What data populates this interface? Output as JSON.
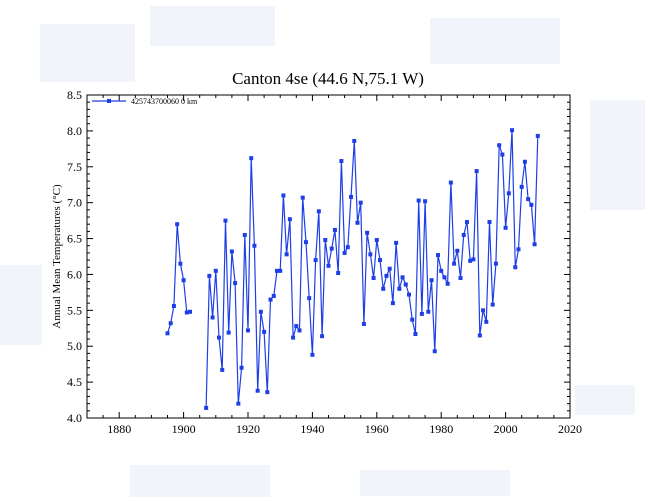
{
  "chart_data": {
    "type": "line",
    "title": "Canton 4se (44.6 N,75.1 W)",
    "xlabel": "",
    "ylabel": "Annual Mean Temperatures (°C)",
    "xlim": [
      1870,
      2020
    ],
    "ylim": [
      4.0,
      8.5
    ],
    "xticks": [
      1880,
      1900,
      1920,
      1940,
      1960,
      1980,
      2000,
      2020
    ],
    "yticks": [
      "4.0",
      "4.5",
      "5.0",
      "5.5",
      "6.0",
      "6.5",
      "7.0",
      "7.5",
      "8.0",
      "8.5"
    ],
    "legend_position": "top-left",
    "grid": false,
    "series": [
      {
        "name": "425743700060  0 km",
        "color": "#1f3fe6",
        "marker": "square",
        "points": [
          [
            1895,
            5.18
          ],
          [
            1896,
            5.32
          ],
          [
            1897,
            5.56
          ],
          [
            1898,
            6.7
          ],
          [
            1899,
            6.15
          ],
          [
            1900,
            5.92
          ],
          [
            1901,
            5.47
          ],
          [
            1902,
            5.48
          ],
          null,
          [
            1907,
            4.14
          ],
          [
            1908,
            5.98
          ],
          [
            1909,
            5.4
          ],
          [
            1910,
            6.05
          ],
          [
            1911,
            5.12
          ],
          [
            1912,
            4.67
          ],
          [
            1913,
            6.75
          ],
          [
            1914,
            5.19
          ],
          [
            1915,
            6.32
          ],
          [
            1916,
            5.88
          ],
          [
            1917,
            4.2
          ],
          [
            1918,
            4.7
          ],
          [
            1919,
            6.55
          ],
          [
            1920,
            5.22
          ],
          [
            1921,
            7.62
          ],
          [
            1922,
            6.4
          ],
          [
            1923,
            4.38
          ],
          [
            1924,
            5.48
          ],
          [
            1925,
            5.2
          ],
          [
            1926,
            4.36
          ],
          [
            1927,
            5.65
          ],
          [
            1928,
            5.7
          ],
          [
            1929,
            6.05
          ],
          [
            1930,
            6.05
          ],
          [
            1931,
            7.1
          ],
          [
            1932,
            6.28
          ],
          [
            1933,
            6.77
          ],
          [
            1934,
            5.12
          ],
          [
            1935,
            5.28
          ],
          [
            1936,
            5.22
          ],
          [
            1937,
            7.07
          ],
          [
            1938,
            6.45
          ],
          [
            1939,
            5.67
          ],
          [
            1940,
            4.88
          ],
          [
            1941,
            6.2
          ],
          [
            1942,
            6.88
          ],
          [
            1943,
            5.14
          ],
          [
            1944,
            6.48
          ],
          [
            1945,
            6.12
          ],
          [
            1946,
            6.36
          ],
          [
            1947,
            6.62
          ],
          [
            1948,
            6.02
          ],
          [
            1949,
            7.58
          ],
          [
            1950,
            6.3
          ],
          [
            1951,
            6.38
          ],
          [
            1952,
            7.08
          ],
          [
            1953,
            7.86
          ],
          [
            1954,
            6.72
          ],
          [
            1955,
            7.0
          ],
          [
            1956,
            5.31
          ],
          [
            1957,
            6.58
          ],
          [
            1958,
            6.28
          ],
          [
            1959,
            5.95
          ],
          [
            1960,
            6.48
          ],
          [
            1961,
            6.2
          ],
          [
            1962,
            5.8
          ],
          [
            1963,
            5.98
          ],
          [
            1964,
            6.08
          ],
          [
            1965,
            5.6
          ],
          [
            1966,
            6.44
          ],
          [
            1967,
            5.8
          ],
          [
            1968,
            5.96
          ],
          [
            1969,
            5.86
          ],
          [
            1970,
            5.72
          ],
          [
            1971,
            5.37
          ],
          [
            1972,
            5.17
          ],
          [
            1973,
            7.03
          ],
          [
            1974,
            5.45
          ],
          [
            1975,
            7.02
          ],
          [
            1976,
            5.48
          ],
          [
            1977,
            5.92
          ],
          [
            1978,
            4.93
          ],
          [
            1979,
            6.27
          ],
          [
            1980,
            6.05
          ],
          [
            1981,
            5.96
          ],
          [
            1982,
            5.87
          ],
          [
            1983,
            7.28
          ],
          [
            1984,
            6.15
          ],
          [
            1985,
            6.33
          ],
          [
            1986,
            5.95
          ],
          [
            1987,
            6.55
          ],
          [
            1988,
            6.73
          ],
          [
            1989,
            6.19
          ],
          [
            1990,
            6.21
          ],
          [
            1991,
            7.44
          ],
          [
            1992,
            5.15
          ],
          [
            1993,
            5.5
          ],
          [
            1994,
            5.34
          ],
          [
            1995,
            6.73
          ],
          [
            1996,
            5.58
          ],
          [
            1997,
            6.15
          ],
          [
            1998,
            7.8
          ],
          [
            1999,
            7.67
          ],
          [
            2000,
            6.65
          ],
          [
            2001,
            7.13
          ],
          [
            2002,
            8.01
          ],
          [
            2003,
            6.1
          ],
          [
            2004,
            6.35
          ],
          [
            2005,
            7.22
          ],
          [
            2006,
            7.57
          ],
          [
            2007,
            7.05
          ],
          [
            2008,
            6.97
          ],
          [
            2009,
            6.42
          ],
          [
            2010,
            7.93
          ]
        ]
      }
    ]
  }
}
